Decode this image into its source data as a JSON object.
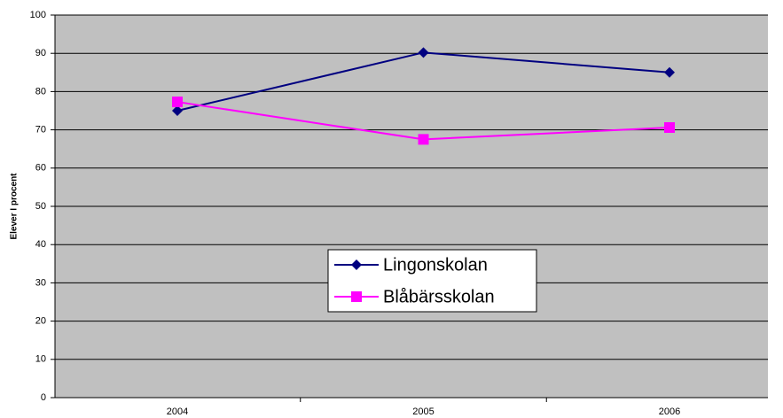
{
  "chart_data": {
    "type": "line",
    "ylabel": "Elever I procent",
    "categories": [
      "2004",
      "2005",
      "2006"
    ],
    "series": [
      {
        "name": "Lingonskolan",
        "color": "#000080",
        "marker": "diamond",
        "values": [
          75,
          90.2,
          85
        ]
      },
      {
        "name": "Blåbärsskolan",
        "color": "#ff00ff",
        "marker": "square",
        "values": [
          77.3,
          67.5,
          70.6
        ]
      }
    ],
    "ylim": [
      0,
      100
    ],
    "yticks": [
      0,
      10,
      20,
      30,
      40,
      50,
      60,
      70,
      80,
      90,
      100
    ],
    "grid": true
  }
}
